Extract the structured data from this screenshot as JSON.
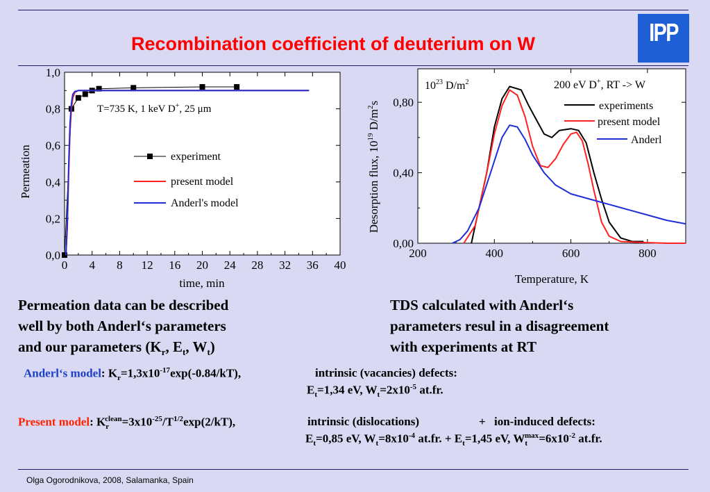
{
  "title": "Recombination coefficient of deuterium on W",
  "logo": "IPP",
  "footer": "Olga Ogorodnikova, 2008, Salamanka, Spain",
  "colors": {
    "background": "#d9d9f3",
    "title": "#ff0000",
    "present_model": "#ff2020",
    "anderl": "#1e2ed8",
    "experiments": "#000000",
    "logo": "#1f5fd6"
  },
  "left_text": [
    "Permeation data can be described",
    "well  by both Anderl‘s parameters",
    "and our parameters (K",
    "r",
    ", E",
    "t",
    ", W",
    "t",
    ")"
  ],
  "right_text": [
    "TDS calculated with Anderl‘s",
    "parameters resul in a disagreement",
    "with experiments at RT"
  ],
  "anderl_line": {
    "label": "Anderl‘s model",
    "k_prefix": ": K",
    "k_sub": "r",
    "k_mid": "=1,3x10",
    "k_sup": "-17",
    "k_end": "exp(-0.84/kT),",
    "defects": "intrinsic (vacancies) defects:",
    "et": "E",
    "et_sub": "t",
    "et_val": "=1,34 eV, W",
    "wt_sub": "t",
    "wt_val": "=2x10",
    "wt_sup": "-5",
    "wt_end": " at.fr."
  },
  "present_line": {
    "label": "Present model",
    "k_prefix": ":  K",
    "k_sub": "r",
    "k_sup1": "clean",
    "k_mid": "=3x10",
    "k_sup2": "-25",
    "k_mid2": "/T",
    "k_sup3": "1/2",
    "k_end": "exp(2/kT),",
    "defects1": "intrinsic (dislocations)",
    "plus": "+",
    "defects2": "ion-induced defects:",
    "a_et": "E",
    "a_et_sub": "t",
    "a_et_val": "=0,85 eV, W",
    "a_wt_sub": "t",
    "a_wt_val": "=8x10",
    "a_wt_sup": "-4",
    "a_wt_end": " at.fr. +  E",
    "b_et_sub": "t",
    "b_et_val": "=1,45 eV, W",
    "b_wt_sub": "t",
    "b_wt_sup1": "max",
    "b_wt_val": "=6x10",
    "b_wt_sup2": "-2",
    "b_wt_end": " at.fr."
  },
  "chart_data": [
    {
      "type": "line",
      "xlabel": "time, min",
      "ylabel": "Permeation",
      "xlim": [
        0,
        40
      ],
      "ylim": [
        0,
        1.0
      ],
      "xticks": [
        "0",
        "4",
        "8",
        "12",
        "16",
        "20",
        "24",
        "28",
        "32",
        "36",
        "40"
      ],
      "yticks": [
        "0,0",
        "0,2",
        "0,4",
        "0,6",
        "0,8",
        "1,0"
      ],
      "annotation": {
        "text": "T=735 K, 1 keV D",
        "sup": "+",
        "text2": ", 25 ",
        "mu": "μ",
        "unit": "m"
      },
      "legend": "center-right",
      "series": [
        {
          "name": "experiment",
          "style": "line+square-markers",
          "color": "#000000",
          "x": [
            0,
            1,
            2,
            3,
            4,
            5,
            10,
            20,
            25
          ],
          "y": [
            0.0,
            0.8,
            0.86,
            0.88,
            0.9,
            0.91,
            0.915,
            0.92,
            0.92
          ]
        },
        {
          "name": "present model",
          "style": "line",
          "color": "#ff2020",
          "x": [
            0.2,
            0.4,
            0.6,
            0.8,
            1.0,
            1.2,
            1.5,
            2,
            3,
            5,
            10,
            20,
            35.5
          ],
          "y": [
            0.0,
            0.15,
            0.45,
            0.68,
            0.8,
            0.86,
            0.89,
            0.9,
            0.9,
            0.9,
            0.9,
            0.9,
            0.9
          ]
        },
        {
          "name": "Anderl's model",
          "style": "line",
          "color": "#1e2ed8",
          "x": [
            0.2,
            0.4,
            0.6,
            0.8,
            1.0,
            1.2,
            1.5,
            2,
            3,
            5,
            10,
            20,
            35.5
          ],
          "y": [
            0.0,
            0.18,
            0.5,
            0.72,
            0.83,
            0.88,
            0.895,
            0.9,
            0.9,
            0.9,
            0.9,
            0.9,
            0.9
          ]
        }
      ]
    },
    {
      "type": "line",
      "title": "200 eV D",
      "title_sup": "+",
      "title_end": ", RT -> W",
      "xlabel": "Temperature, K",
      "ylabel": "Desorption flux, 10",
      "ylabel_sup": "19",
      "ylabel_mid": " D/m",
      "ylabel_sup2": "2",
      "ylabel_end": "s",
      "unit_label": "10",
      "unit_sup": "23",
      "unit_end": " D/m",
      "unit_sup2": "2",
      "xlim": [
        200,
        900
      ],
      "ylim": [
        0,
        0.99
      ],
      "xticks": [
        "200",
        "400",
        "600",
        "800"
      ],
      "yticks": [
        "0,00",
        "0,40",
        "0,80"
      ],
      "legend": "top-right",
      "series": [
        {
          "name": "experiments",
          "color": "#000000",
          "x": [
            340,
            350,
            380,
            400,
            420,
            440,
            470,
            490,
            510,
            530,
            550,
            570,
            600,
            620,
            640,
            660,
            680,
            700,
            730,
            760,
            790
          ],
          "y": [
            0.0,
            0.1,
            0.4,
            0.66,
            0.82,
            0.89,
            0.87,
            0.78,
            0.7,
            0.62,
            0.6,
            0.64,
            0.65,
            0.64,
            0.57,
            0.4,
            0.25,
            0.12,
            0.03,
            0.01,
            0.01
          ]
        },
        {
          "name": "present model",
          "color": "#ff2020",
          "x": [
            320,
            350,
            380,
            400,
            420,
            440,
            460,
            480,
            500,
            520,
            540,
            560,
            580,
            600,
            615,
            630,
            645,
            660,
            680,
            700,
            730,
            780,
            850,
            900
          ],
          "y": [
            0.0,
            0.1,
            0.4,
            0.62,
            0.78,
            0.87,
            0.84,
            0.72,
            0.55,
            0.44,
            0.43,
            0.48,
            0.56,
            0.62,
            0.63,
            0.58,
            0.45,
            0.3,
            0.12,
            0.04,
            0.01,
            0.005,
            0.0,
            0.0
          ]
        },
        {
          "name": "Anderl",
          "color": "#1e2ed8",
          "x": [
            290,
            310,
            330,
            360,
            390,
            420,
            440,
            460,
            480,
            500,
            530,
            560,
            600,
            650,
            700,
            750,
            800,
            850,
            900
          ],
          "y": [
            0.0,
            0.02,
            0.07,
            0.2,
            0.4,
            0.6,
            0.67,
            0.66,
            0.59,
            0.5,
            0.4,
            0.33,
            0.28,
            0.25,
            0.22,
            0.19,
            0.16,
            0.13,
            0.11
          ]
        }
      ]
    }
  ]
}
